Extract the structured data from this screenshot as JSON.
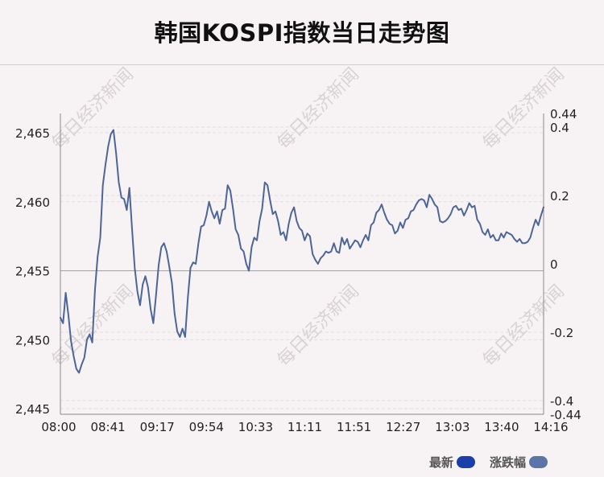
{
  "title": "韩国KOSPI指数当日走势图",
  "watermark": "每日经济新闻",
  "legend": [
    {
      "label": "最新",
      "color": "#1a3faa"
    },
    {
      "label": "涨跌幅",
      "color": "#5b75a8"
    }
  ],
  "chart_data": {
    "type": "line",
    "title": "韩国KOSPI指数当日走势图",
    "x_ticks": [
      "08:00",
      "08:41",
      "09:17",
      "09:54",
      "10:33",
      "11:11",
      "11:51",
      "12:27",
      "13:03",
      "13:40",
      "14:16"
    ],
    "y_left_ticks": [
      "2,465",
      "2,460",
      "2,455",
      "2,450",
      "2,445"
    ],
    "y_right_ticks": [
      "0.44",
      "0.4",
      "0.2",
      "0",
      "-0.2",
      "-0.4",
      "-0.44"
    ],
    "ylim_left": [
      2444.6,
      2466.4
    ],
    "ylim_right": [
      -0.44,
      0.44
    ],
    "baseline_left": 2455.0,
    "line_color": "#4d6597",
    "series": [
      {
        "values": [
          2451.6,
          2451.2,
          2453.4,
          2451.8,
          2449.9,
          2448.8,
          2447.9,
          2447.6,
          2448.2,
          2448.7,
          2450.0,
          2450.4,
          2449.8,
          2453.6,
          2456.0,
          2457.4,
          2461.2,
          2462.7,
          2464.0,
          2464.9,
          2465.2,
          2463.5,
          2461.4,
          2460.3,
          2460.2,
          2459.4,
          2461.0,
          2458.0,
          2455.2,
          2453.5,
          2452.5,
          2454.0,
          2454.6,
          2453.8,
          2452.2,
          2451.2,
          2453.2,
          2455.4,
          2456.7,
          2457.0,
          2456.4,
          2455.3,
          2454.1,
          2451.9,
          2450.6,
          2450.2,
          2450.8,
          2450.2,
          2453.0,
          2455.2,
          2455.6,
          2455.5,
          2457.0,
          2458.2,
          2458.3,
          2459.0,
          2460.0,
          2459.3,
          2458.8,
          2459.3,
          2458.4,
          2459.4,
          2459.5,
          2461.2,
          2460.8,
          2459.5,
          2458.0,
          2457.6,
          2456.6,
          2456.4,
          2455.5,
          2455.0,
          2456.7,
          2457.4,
          2457.2,
          2458.6,
          2459.5,
          2461.4,
          2461.2,
          2460.1,
          2459.1,
          2459.3,
          2458.6,
          2457.6,
          2457.8,
          2457.2,
          2458.4,
          2459.2,
          2459.6,
          2458.6,
          2458.1,
          2457.9,
          2457.2,
          2457.7,
          2457.5,
          2456.2,
          2455.8,
          2455.5,
          2455.9,
          2456.1,
          2456.4,
          2456.3,
          2456.4,
          2457.0,
          2456.4,
          2456.3,
          2457.4,
          2456.9,
          2457.3,
          2456.6,
          2456.9,
          2457.2,
          2457.1,
          2456.7,
          2457.2,
          2457.6,
          2457.2,
          2458.3,
          2458.5,
          2459.2,
          2459.4,
          2459.8,
          2459.2,
          2458.7,
          2458.4,
          2458.3,
          2457.7,
          2457.9,
          2458.5,
          2458.1,
          2458.7,
          2458.8,
          2459.3,
          2459.4,
          2459.8,
          2460.1,
          2460.2,
          2460.1,
          2459.6,
          2460.5,
          2460.2,
          2459.8,
          2459.6,
          2458.6,
          2458.5,
          2458.6,
          2458.8,
          2459.1,
          2459.6,
          2459.7,
          2459.4,
          2459.5,
          2459.0,
          2459.4,
          2459.9,
          2459.6,
          2459.7,
          2458.7,
          2458.4,
          2457.8,
          2457.6,
          2458.0,
          2457.4,
          2457.6,
          2457.2,
          2457.2,
          2457.7,
          2457.4,
          2457.8,
          2457.7,
          2457.6,
          2457.3,
          2457.1,
          2457.3,
          2457.0,
          2457.0,
          2457.1,
          2457.4,
          2458.1,
          2458.7,
          2458.3,
          2459.0,
          2459.6
        ]
      }
    ]
  }
}
